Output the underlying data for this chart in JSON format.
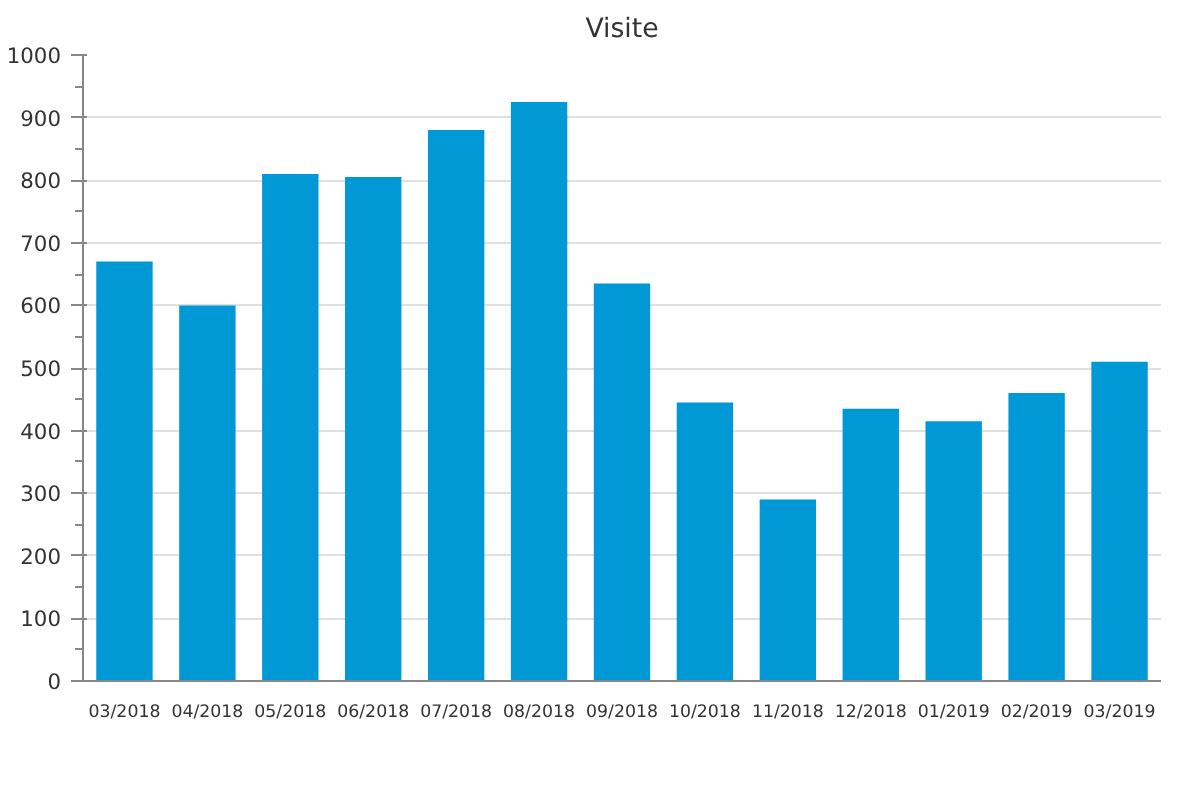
{
  "chart_data": {
    "type": "bar",
    "title": "Visite",
    "categories": [
      "03/2018",
      "04/2018",
      "05/2018",
      "06/2018",
      "07/2018",
      "08/2018",
      "09/2018",
      "10/2018",
      "11/2018",
      "12/2018",
      "01/2019",
      "02/2019",
      "03/2019"
    ],
    "values": [
      670,
      600,
      810,
      805,
      880,
      925,
      635,
      445,
      290,
      435,
      415,
      460,
      510
    ],
    "color": "#0099d6",
    "ylim": [
      0,
      1000
    ],
    "yticks": [
      0,
      100,
      200,
      300,
      400,
      500,
      600,
      700,
      800,
      900,
      1000
    ],
    "grid": "y"
  }
}
